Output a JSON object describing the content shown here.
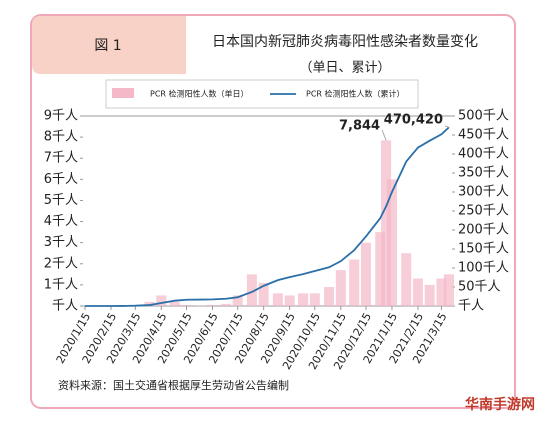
{
  "chart_data": {
    "type": "bar_line",
    "figure_label": "図 1",
    "title": "日本国内新冠肺炎病毒阳性感染者数量变化",
    "subtitle": "（单日、累计）",
    "source": "资料来源：国土交通省根据厚生劳动省公告编制",
    "watermark": "华南手游网",
    "x": [
      "2020/1/15",
      "2020/2/1",
      "2020/2/15",
      "2020/3/1",
      "2020/3/15",
      "2020/4/1",
      "2020/4/15",
      "2020/5/1",
      "2020/5/15",
      "2020/6/1",
      "2020/6/15",
      "2020/7/1",
      "2020/7/15",
      "2020/8/1",
      "2020/8/15",
      "2020/9/1",
      "2020/9/15",
      "2020/10/1",
      "2020/10/15",
      "2020/11/1",
      "2020/11/15",
      "2020/12/1",
      "2020/12/15",
      "2021/1/1",
      "2021/1/8",
      "2021/1/15",
      "2021/2/1",
      "2021/2/15",
      "2021/3/1",
      "2021/3/15",
      "2021/3/24"
    ],
    "xlim": [
      "2020/1/15",
      "2021/3/24"
    ],
    "xticks": [
      "2020/1/15",
      "2020/2/15",
      "2020/3/15",
      "2020/4/15",
      "2020/5/15",
      "2020/6/15",
      "2020/7/15",
      "2020/8/15",
      "2020/9/15",
      "2020/10/15",
      "2020/11/15",
      "2020/12/15",
      "2021/1/15",
      "2021/2/15",
      "2021/3/15"
    ],
    "series": [
      {
        "name": "PCR 检测阳性人数（单日）",
        "kind": "bar",
        "color": "#f4b8c8",
        "values": [
          0,
          0,
          0.01,
          0.02,
          0.04,
          0.2,
          0.5,
          0.2,
          0.05,
          0.03,
          0.05,
          0.1,
          0.5,
          1.5,
          1.1,
          0.6,
          0.5,
          0.6,
          0.6,
          0.9,
          1.7,
          2.2,
          3.0,
          3.5,
          7.844,
          6.0,
          2.5,
          1.3,
          1.0,
          1.3,
          1.5
        ],
        "value_labels": [
          null,
          null,
          null,
          null,
          null,
          null,
          null,
          null,
          null,
          null,
          null,
          null,
          null,
          null,
          null,
          null,
          null,
          null,
          null,
          null,
          null,
          null,
          null,
          null,
          "7,844",
          null,
          null,
          null,
          null,
          null,
          null
        ]
      },
      {
        "name": "PCR 检测阳性人数（累计）",
        "kind": "line",
        "axis": "y2",
        "color": "#2a6fa8",
        "values": [
          0,
          0,
          0.05,
          0.2,
          0.8,
          2.5,
          8,
          14,
          16.5,
          17,
          17.5,
          19,
          23,
          37,
          53,
          68,
          76,
          84,
          92,
          102,
          118,
          147,
          183,
          231,
          262,
          300,
          380,
          417,
          435,
          452,
          470.42
        ],
        "value_labels": [
          null,
          null,
          null,
          null,
          null,
          null,
          null,
          null,
          null,
          null,
          null,
          null,
          null,
          null,
          null,
          null,
          null,
          null,
          null,
          null,
          null,
          null,
          null,
          null,
          null,
          null,
          null,
          null,
          null,
          null,
          "470,420"
        ]
      }
    ],
    "ylim": [
      0,
      9
    ],
    "yticks": [
      {
        "value": 0,
        "label": "千人"
      },
      {
        "value": 1,
        "label": "1千人"
      },
      {
        "value": 2,
        "label": "2千人"
      },
      {
        "value": 3,
        "label": "3千人"
      },
      {
        "value": 4,
        "label": "4千人"
      },
      {
        "value": 5,
        "label": "5千人"
      },
      {
        "value": 6,
        "label": "6千人"
      },
      {
        "value": 7,
        "label": "7千人"
      },
      {
        "value": 8,
        "label": "8千人"
      },
      {
        "value": 9,
        "label": "9千人"
      }
    ],
    "y2lim": [
      0,
      500
    ],
    "y2ticks": [
      {
        "value": 0,
        "label": "千人"
      },
      {
        "value": 50,
        "label": "50千人"
      },
      {
        "value": 100,
        "label": "100千人"
      },
      {
        "value": 150,
        "label": "150千人"
      },
      {
        "value": 200,
        "label": "200千人"
      },
      {
        "value": 250,
        "label": "250千人"
      },
      {
        "value": 300,
        "label": "300千人"
      },
      {
        "value": 350,
        "label": "350千人"
      },
      {
        "value": 400,
        "label": "400千人"
      },
      {
        "value": 450,
        "label": "450千人"
      },
      {
        "value": 500,
        "label": "500千人"
      }
    ]
  }
}
